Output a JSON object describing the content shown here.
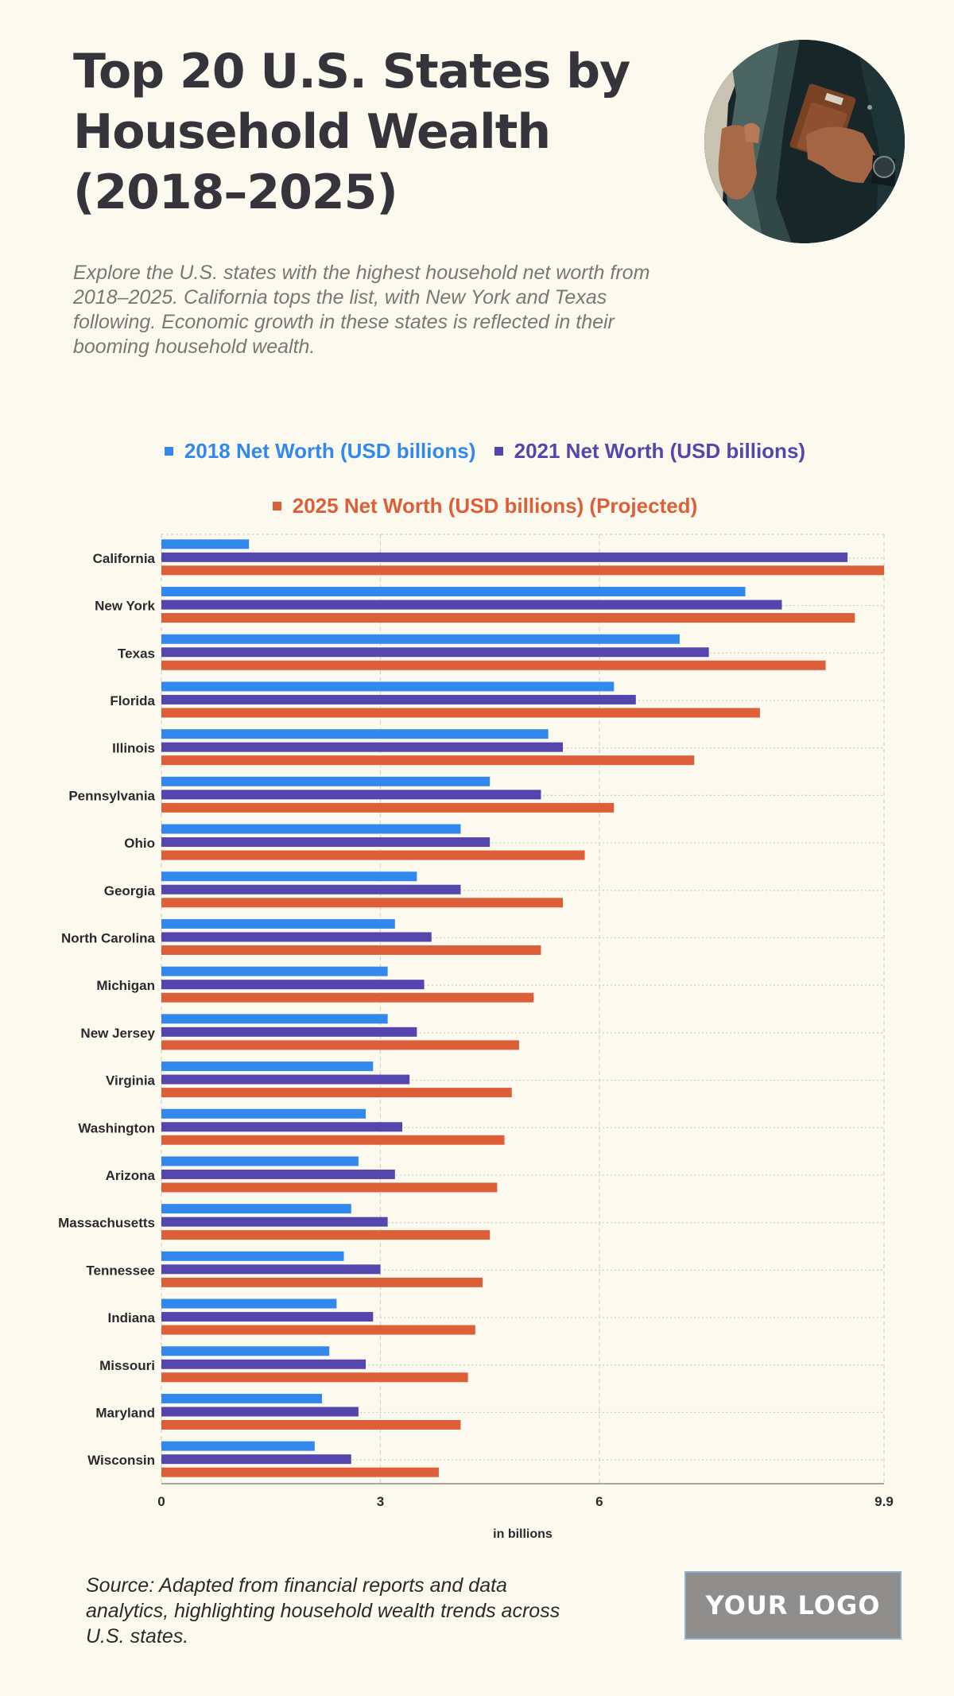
{
  "header": {
    "title": "Top 20 U.S. States by Household Wealth (2018–2025)",
    "subtitle": "Explore the U.S. states with the highest household net worth from 2018–2025. California tops the list, with New York and Texas following. Economic growth in these states is reflected in their booming household wealth.",
    "photo_alt": "Person tucking a brown wallet into a dark jacket pocket"
  },
  "colors": {
    "background": "#fcfaef",
    "series_2018": "#3388ee",
    "series_2021": "#5546ad",
    "series_2025": "#dd5f3a",
    "title": "#35343b",
    "subtitle": "#7a7873"
  },
  "legend": [
    {
      "label": "2018 Net Worth (USD billions)",
      "color": "#3388ee"
    },
    {
      "label": "2021 Net Worth (USD billions)",
      "color": "#5546ad"
    },
    {
      "label": "2025 Net Worth (USD billions) (Projected)",
      "color": "#dd5f3a"
    }
  ],
  "chart_data": {
    "type": "bar",
    "orientation": "horizontal",
    "title": "Top 20 U.S. States by Household Wealth (2018–2025)",
    "xlabel": "in billions",
    "ylabel": "",
    "xlim": [
      0,
      9.9
    ],
    "xticks": [
      0,
      3,
      6,
      9.9
    ],
    "xtick_labels": [
      "0",
      "3",
      "6",
      "9.9"
    ],
    "grid": true,
    "legend_position": "top-center",
    "categories": [
      "California",
      "New York",
      "Texas",
      "Florida",
      "Illinois",
      "Pennsylvania",
      "Ohio",
      "Georgia",
      "North Carolina",
      "Michigan",
      "New Jersey",
      "Virginia",
      "Washington",
      "Arizona",
      "Massachusetts",
      "Tennessee",
      "Indiana",
      "Missouri",
      "Maryland",
      "Wisconsin"
    ],
    "series": [
      {
        "name": "2018 Net Worth (USD billions)",
        "color": "#3388ee",
        "values": [
          1.2,
          8.0,
          7.1,
          6.2,
          5.3,
          4.5,
          4.1,
          3.5,
          3.2,
          3.1,
          3.1,
          2.9,
          2.8,
          2.7,
          2.6,
          2.5,
          2.4,
          2.3,
          2.2,
          2.1
        ]
      },
      {
        "name": "2021 Net Worth (USD billions)",
        "color": "#5546ad",
        "values": [
          9.4,
          8.5,
          7.5,
          6.5,
          5.5,
          5.2,
          4.5,
          4.1,
          3.7,
          3.6,
          3.5,
          3.4,
          3.3,
          3.2,
          3.1,
          3.0,
          2.9,
          2.8,
          2.7,
          2.6
        ]
      },
      {
        "name": "2025 Net Worth (USD billions) (Projected)",
        "color": "#dd5f3a",
        "values": [
          9.9,
          9.5,
          9.1,
          8.2,
          7.3,
          6.2,
          5.8,
          5.5,
          5.2,
          5.1,
          4.9,
          4.8,
          4.7,
          4.6,
          4.5,
          4.4,
          4.3,
          4.2,
          4.1,
          3.8
        ]
      }
    ]
  },
  "footer": {
    "source": "Source: Adapted from financial reports and data analytics, highlighting household wealth trends across U.S. states.",
    "logo_text": "YOUR LOGO"
  }
}
